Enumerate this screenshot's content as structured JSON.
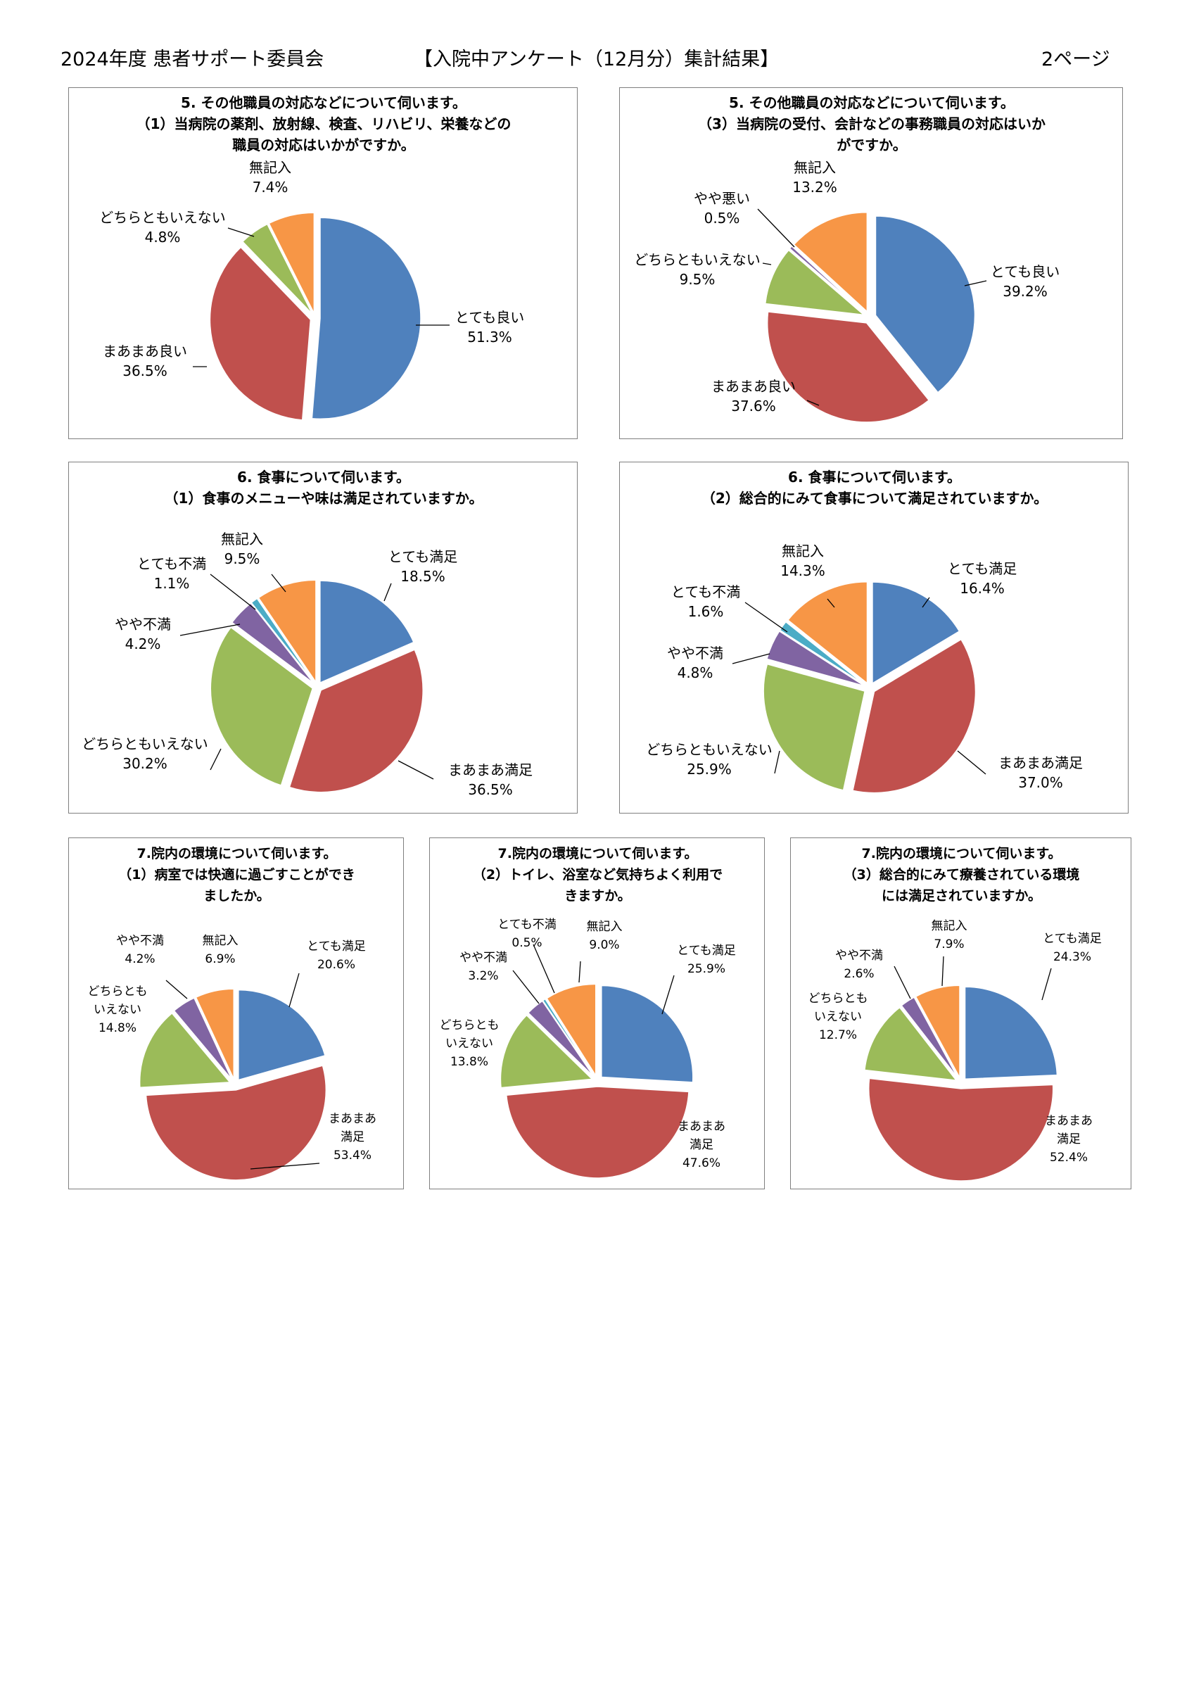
{
  "header": {
    "left": "2024年度 患者サポート委員会",
    "center": "【入院中アンケート（12月分）集計結果】",
    "right": "2ページ"
  },
  "colors": {
    "blue": "#4F81BD",
    "red": "#C0504D",
    "green": "#9BBB59",
    "purple": "#8064A2",
    "teal": "#4BACC6",
    "orange": "#F79646"
  },
  "chart_data": [
    {
      "type": "pie",
      "title": [
        "5. その他職員の対応などについて伺います。",
        "（1）当病院の薬剤、放射線、検査、リハビリ、栄養などの",
        "職員の対応はいかがですか。"
      ],
      "slices": [
        {
          "name": "とても良い",
          "value": 51.3,
          "label": "51.3%",
          "color": "blue"
        },
        {
          "name": "まあまあ良い",
          "value": 36.5,
          "label": "36.5%",
          "color": "red"
        },
        {
          "name": "どちらともいえない",
          "value": 4.8,
          "label": "4.8%",
          "color": "green"
        },
        {
          "name": "無記入",
          "value": 7.4,
          "label": "7.4%",
          "color": "orange"
        }
      ]
    },
    {
      "type": "pie",
      "title": [
        "5. その他職員の対応などについて伺います。",
        "（3）当病院の受付、会計などの事務職員の対応はいか",
        "がですか。"
      ],
      "slices": [
        {
          "name": "とても良い",
          "value": 39.2,
          "label": "39.2%",
          "color": "blue"
        },
        {
          "name": "まあまあ良い",
          "value": 37.6,
          "label": "37.6%",
          "color": "red"
        },
        {
          "name": "どちらともいえない",
          "value": 9.5,
          "label": "9.5%",
          "color": "green"
        },
        {
          "name": "やや悪い",
          "value": 0.5,
          "label": "0.5%",
          "color": "purple"
        },
        {
          "name": "無記入",
          "value": 13.2,
          "label": "13.2%",
          "color": "orange"
        }
      ]
    },
    {
      "type": "pie",
      "title": [
        "6. 食事について伺います。",
        "（1）食事のメニューや味は満足されていますか。"
      ],
      "slices": [
        {
          "name": "とても満足",
          "value": 18.5,
          "label": "18.5%",
          "color": "blue"
        },
        {
          "name": "まあまあ満足",
          "value": 36.5,
          "label": "36.5%",
          "color": "red"
        },
        {
          "name": "どちらともいえない",
          "value": 30.2,
          "label": "30.2%",
          "color": "green"
        },
        {
          "name": "やや不満",
          "value": 4.2,
          "label": "4.2%",
          "color": "purple"
        },
        {
          "name": "とても不満",
          "value": 1.1,
          "label": "1.1%",
          "color": "teal"
        },
        {
          "name": "無記入",
          "value": 9.5,
          "label": "9.5%",
          "color": "orange"
        }
      ]
    },
    {
      "type": "pie",
      "title": [
        "6. 食事について伺います。",
        "（2）総合的にみて食事について満足されていますか。"
      ],
      "slices": [
        {
          "name": "とても満足",
          "value": 16.4,
          "label": "16.4%",
          "color": "blue"
        },
        {
          "name": "まあまあ満足",
          "value": 37.0,
          "label": "37.0%",
          "color": "red"
        },
        {
          "name": "どちらともいえない",
          "value": 25.9,
          "label": "25.9%",
          "color": "green"
        },
        {
          "name": "やや不満",
          "value": 4.8,
          "label": "4.8%",
          "color": "purple"
        },
        {
          "name": "とても不満",
          "value": 1.6,
          "label": "1.6%",
          "color": "teal"
        },
        {
          "name": "無記入",
          "value": 14.3,
          "label": "14.3%",
          "color": "orange"
        }
      ]
    },
    {
      "type": "pie",
      "title": [
        "7.院内の環境について伺います。",
        "（1）病室では快適に過ごすことができ",
        "ましたか。"
      ],
      "slices": [
        {
          "name": "とても満足",
          "value": 20.6,
          "label": "20.6%",
          "color": "blue"
        },
        {
          "name": "まあまあ満足",
          "value": 53.4,
          "label": "53.4%",
          "color": "red"
        },
        {
          "name": "どちらともいえない",
          "value": 14.8,
          "label": "14.8%",
          "color": "green"
        },
        {
          "name": "やや不満",
          "value": 4.2,
          "label": "4.2%",
          "color": "purple"
        },
        {
          "name": "無記入",
          "value": 6.9,
          "label": "6.9%",
          "color": "orange"
        }
      ]
    },
    {
      "type": "pie",
      "title": [
        "7.院内の環境について伺います。",
        "（2）トイレ、浴室など気持ちよく利用で",
        "きますか。"
      ],
      "slices": [
        {
          "name": "とても満足",
          "value": 25.9,
          "label": "25.9%",
          "color": "blue"
        },
        {
          "name": "まあまあ満足",
          "value": 47.6,
          "label": "47.6%",
          "color": "red"
        },
        {
          "name": "どちらともいえない",
          "value": 13.8,
          "label": "13.8%",
          "color": "green"
        },
        {
          "name": "やや不満",
          "value": 3.2,
          "label": "3.2%",
          "color": "purple"
        },
        {
          "name": "とても不満",
          "value": 0.5,
          "label": "0.5%",
          "color": "teal"
        },
        {
          "name": "無記入",
          "value": 9.0,
          "label": "9.0%",
          "color": "orange"
        }
      ]
    },
    {
      "type": "pie",
      "title": [
        "7.院内の環境について伺います。",
        "（3）総合的にみて療養されている環境",
        "には満足されていますか。"
      ],
      "slices": [
        {
          "name": "とても満足",
          "value": 24.3,
          "label": "24.3%",
          "color": "blue"
        },
        {
          "name": "まあまあ満足",
          "value": 52.4,
          "label": "52.4%",
          "color": "red"
        },
        {
          "name": "どちらともいえない",
          "value": 12.7,
          "label": "12.7%",
          "color": "green"
        },
        {
          "name": "やや不満",
          "value": 2.6,
          "label": "2.6%",
          "color": "purple"
        },
        {
          "name": "無記入",
          "value": 7.9,
          "label": "7.9%",
          "color": "orange"
        }
      ]
    }
  ]
}
